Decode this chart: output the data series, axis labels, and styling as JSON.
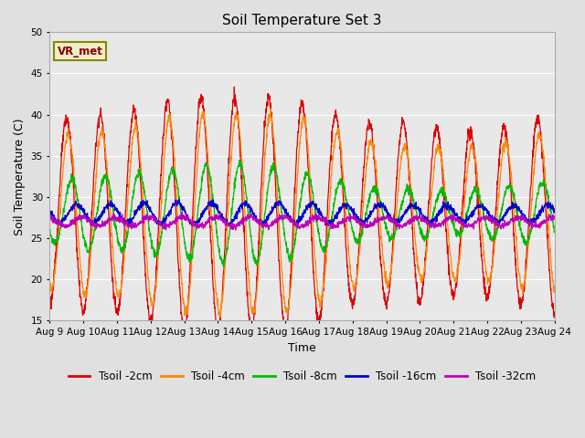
{
  "title": "Soil Temperature Set 3",
  "xlabel": "Time",
  "ylabel": "Soil Temperature (C)",
  "ylim": [
    15,
    50
  ],
  "xlim": [
    0,
    15
  ],
  "x_tick_labels": [
    "Aug 9",
    "Aug 10",
    "Aug 11",
    "Aug 12",
    "Aug 13",
    "Aug 14",
    "Aug 15",
    "Aug 16",
    "Aug 17",
    "Aug 18",
    "Aug 19",
    "Aug 20",
    "Aug 21",
    "Aug 22",
    "Aug 23",
    "Aug 24"
  ],
  "series_colors": [
    "#dd0000",
    "#ff8800",
    "#00bb00",
    "#0000cc",
    "#bb00bb"
  ],
  "series_labels": [
    "Tsoil -2cm",
    "Tsoil -4cm",
    "Tsoil -8cm",
    "Tsoil -16cm",
    "Tsoil -32cm"
  ],
  "figure_bg": "#e0e0e0",
  "plot_bg": "#e8e8e8",
  "grid_color": "#ffffff",
  "annotation_text": "VR_met",
  "annotation_fg": "#880000",
  "annotation_bg": "#eeeecc",
  "annotation_border": "#888800",
  "title_fontsize": 11,
  "axis_label_fontsize": 9,
  "tick_fontsize": 7.5,
  "legend_fontsize": 8.5
}
